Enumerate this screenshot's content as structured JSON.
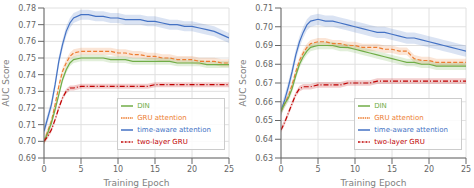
{
  "chart_data": [
    {
      "type": "line",
      "xlabel": "Training Epoch",
      "ylabel": "AUC Score",
      "x": [
        0,
        0.5,
        1,
        1.5,
        2,
        2.5,
        3,
        3.5,
        4,
        5,
        6,
        7,
        8,
        9,
        10,
        11,
        12,
        13,
        14,
        15,
        16,
        17,
        18,
        19,
        20,
        21,
        22,
        23,
        24,
        25
      ],
      "xlim": [
        0,
        25
      ],
      "xticks": [
        0,
        5,
        10,
        15,
        20,
        25
      ],
      "ylim": [
        0.69,
        0.78
      ],
      "yticks": [
        0.69,
        {
          "value": 0.7,
          "label": "0.70"
        },
        0.71,
        0.72,
        0.73,
        0.74,
        0.75,
        0.76,
        0.77,
        0.78
      ],
      "grid": true,
      "legend": "lower right",
      "series": [
        {
          "name": "time-aware attention",
          "color": "#4472C4",
          "line_style": "solid",
          "band": 0.003,
          "values": [
            0.706,
            0.714,
            0.722,
            0.734,
            0.748,
            0.758,
            0.766,
            0.771,
            0.774,
            0.776,
            0.776,
            0.775,
            0.775,
            0.774,
            0.774,
            0.773,
            0.773,
            0.773,
            0.772,
            0.772,
            0.771,
            0.77,
            0.77,
            0.769,
            0.769,
            0.768,
            0.767,
            0.766,
            0.764,
            0.762
          ]
        },
        {
          "name": "GRU attention",
          "color": "#ED7D31",
          "line_style": "dashed",
          "band": 0.0022,
          "values": [
            0.7,
            0.706,
            0.712,
            0.722,
            0.733,
            0.742,
            0.747,
            0.751,
            0.753,
            0.754,
            0.754,
            0.754,
            0.754,
            0.754,
            0.753,
            0.753,
            0.752,
            0.752,
            0.751,
            0.751,
            0.75,
            0.75,
            0.749,
            0.749,
            0.749,
            0.748,
            0.748,
            0.748,
            0.747,
            0.747
          ]
        },
        {
          "name": "DIN",
          "color": "#70AD47",
          "line_style": "solid",
          "band": 0.002,
          "values": [
            0.7,
            0.705,
            0.711,
            0.719,
            0.728,
            0.737,
            0.743,
            0.747,
            0.749,
            0.75,
            0.75,
            0.75,
            0.75,
            0.749,
            0.749,
            0.749,
            0.748,
            0.748,
            0.748,
            0.748,
            0.748,
            0.748,
            0.747,
            0.747,
            0.747,
            0.747,
            0.746,
            0.746,
            0.746,
            0.746
          ]
        },
        {
          "name": "two-layer GRU",
          "color": "#C00000",
          "line_style": "dashdot",
          "band": 0.0015,
          "values": [
            0.7,
            0.703,
            0.707,
            0.713,
            0.72,
            0.726,
            0.73,
            0.732,
            0.732,
            0.733,
            0.733,
            0.733,
            0.733,
            0.733,
            0.733,
            0.733,
            0.733,
            0.733,
            0.733,
            0.734,
            0.734,
            0.734,
            0.734,
            0.734,
            0.734,
            0.734,
            0.734,
            0.734,
            0.734,
            0.734
          ]
        }
      ]
    },
    {
      "type": "line",
      "xlabel": "Training Epoch",
      "ylabel": "AUC Score",
      "x": [
        0,
        0.5,
        1,
        1.5,
        2,
        2.5,
        3,
        3.5,
        4,
        5,
        6,
        7,
        8,
        9,
        10,
        11,
        12,
        13,
        14,
        15,
        16,
        17,
        18,
        19,
        20,
        21,
        22,
        23,
        24,
        25
      ],
      "xlim": [
        0,
        25
      ],
      "xticks": [
        0,
        5,
        10,
        15,
        20,
        25
      ],
      "ylim": [
        0.63,
        0.71
      ],
      "yticks": [
        0.63,
        0.64,
        0.65,
        0.66,
        0.67,
        0.68,
        0.69,
        {
          "value": 0.7,
          "label": "0.70"
        },
        0.71
      ],
      "grid": true,
      "legend": "lower right",
      "series": [
        {
          "name": "time-aware attention",
          "color": "#4472C4",
          "line_style": "solid",
          "band": 0.003,
          "values": [
            0.655,
            0.661,
            0.668,
            0.676,
            0.685,
            0.692,
            0.697,
            0.701,
            0.703,
            0.704,
            0.703,
            0.703,
            0.702,
            0.701,
            0.7,
            0.699,
            0.698,
            0.697,
            0.697,
            0.696,
            0.695,
            0.694,
            0.694,
            0.693,
            0.692,
            0.691,
            0.69,
            0.689,
            0.688,
            0.687
          ]
        },
        {
          "name": "GRU attention",
          "color": "#ED7D31",
          "line_style": "dashed",
          "band": 0.002,
          "values": [
            0.655,
            0.659,
            0.663,
            0.669,
            0.676,
            0.682,
            0.686,
            0.689,
            0.691,
            0.692,
            0.692,
            0.691,
            0.691,
            0.69,
            0.69,
            0.689,
            0.689,
            0.689,
            0.688,
            0.688,
            0.687,
            0.687,
            0.683,
            0.682,
            0.682,
            0.681,
            0.681,
            0.681,
            0.681,
            0.681
          ]
        },
        {
          "name": "DIN",
          "color": "#70AD47",
          "line_style": "solid",
          "band": 0.002,
          "values": [
            0.655,
            0.659,
            0.662,
            0.667,
            0.674,
            0.68,
            0.684,
            0.687,
            0.689,
            0.69,
            0.69,
            0.69,
            0.689,
            0.689,
            0.688,
            0.687,
            0.686,
            0.685,
            0.684,
            0.683,
            0.682,
            0.681,
            0.681,
            0.68,
            0.68,
            0.679,
            0.679,
            0.679,
            0.679,
            0.679
          ]
        },
        {
          "name": "two-layer GRU",
          "color": "#C00000",
          "line_style": "dashdot",
          "band": 0.0015,
          "values": [
            0.645,
            0.649,
            0.654,
            0.659,
            0.664,
            0.667,
            0.668,
            0.668,
            0.668,
            0.669,
            0.669,
            0.669,
            0.669,
            0.67,
            0.67,
            0.67,
            0.67,
            0.671,
            0.671,
            0.671,
            0.671,
            0.671,
            0.671,
            0.671,
            0.671,
            0.671,
            0.671,
            0.671,
            0.671,
            0.671
          ]
        }
      ]
    }
  ]
}
